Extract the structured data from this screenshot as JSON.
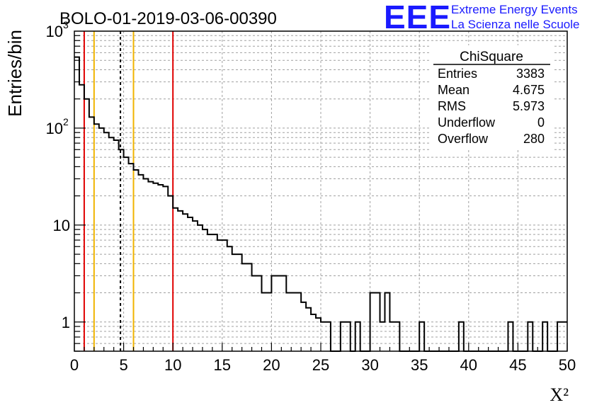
{
  "chart_data": {
    "type": "histogram",
    "title": "BOLO-01-2019-03-06-00390",
    "xlabel": "X²",
    "ylabel": "Entries/bin",
    "xlim": [
      0,
      50
    ],
    "ylim": [
      0.5,
      1000
    ],
    "yscale": "log",
    "grid": true,
    "bin_width": 0.5,
    "x_ticks": [
      "0",
      "5",
      "10",
      "15",
      "20",
      "25",
      "30",
      "35",
      "40",
      "45",
      "50"
    ],
    "y_ticks": [
      {
        "value": 1,
        "label": "1"
      },
      {
        "value": 10,
        "label": "10"
      },
      {
        "value": 100,
        "label": "10",
        "exp": "2"
      },
      {
        "value": 1000,
        "label": "10",
        "exp": "3"
      }
    ],
    "values": [
      540,
      280,
      200,
      130,
      110,
      100,
      90,
      80,
      75,
      60,
      50,
      43,
      37,
      33,
      30,
      28,
      27,
      26,
      25,
      20,
      15,
      14,
      13,
      12,
      11,
      10,
      9,
      8,
      8,
      7,
      7,
      6,
      5,
      5,
      4,
      4,
      3,
      3,
      2,
      2,
      3,
      3,
      3,
      2,
      2,
      2,
      1.6,
      1.4,
      1.2,
      1.1,
      1,
      1,
      0,
      0,
      1,
      1,
      0,
      1,
      0,
      0,
      2,
      2,
      1,
      2,
      1,
      1,
      0,
      0,
      0,
      0,
      1,
      0,
      0,
      0,
      0,
      0,
      0,
      0,
      1,
      0,
      0,
      0,
      0,
      0,
      0,
      0,
      0,
      0,
      1,
      0,
      0,
      0,
      1,
      0,
      0,
      1,
      0,
      0,
      1,
      1
    ],
    "vertical_lines": [
      {
        "x": 1,
        "color": "#e00000",
        "style": "solid"
      },
      {
        "x": 2,
        "color": "#f0b400",
        "style": "solid"
      },
      {
        "x": 4.675,
        "color": "#000000",
        "style": "dashed"
      },
      {
        "x": 6,
        "color": "#f0b400",
        "style": "solid"
      },
      {
        "x": 10,
        "color": "#e00000",
        "style": "solid"
      }
    ],
    "stats": {
      "title": "ChiSquare",
      "rows": [
        {
          "label": "Entries",
          "value": "3383"
        },
        {
          "label": "Mean",
          "value": "4.675"
        },
        {
          "label": "RMS",
          "value": "5.973"
        },
        {
          "label": "Underflow",
          "value": "0"
        },
        {
          "label": "Overflow",
          "value": "280"
        }
      ]
    }
  },
  "logo": {
    "mark": "EEE",
    "line1": "Extreme Energy Events",
    "line2": "La Scienza nelle Scuole",
    "color": "#1a1aff"
  }
}
